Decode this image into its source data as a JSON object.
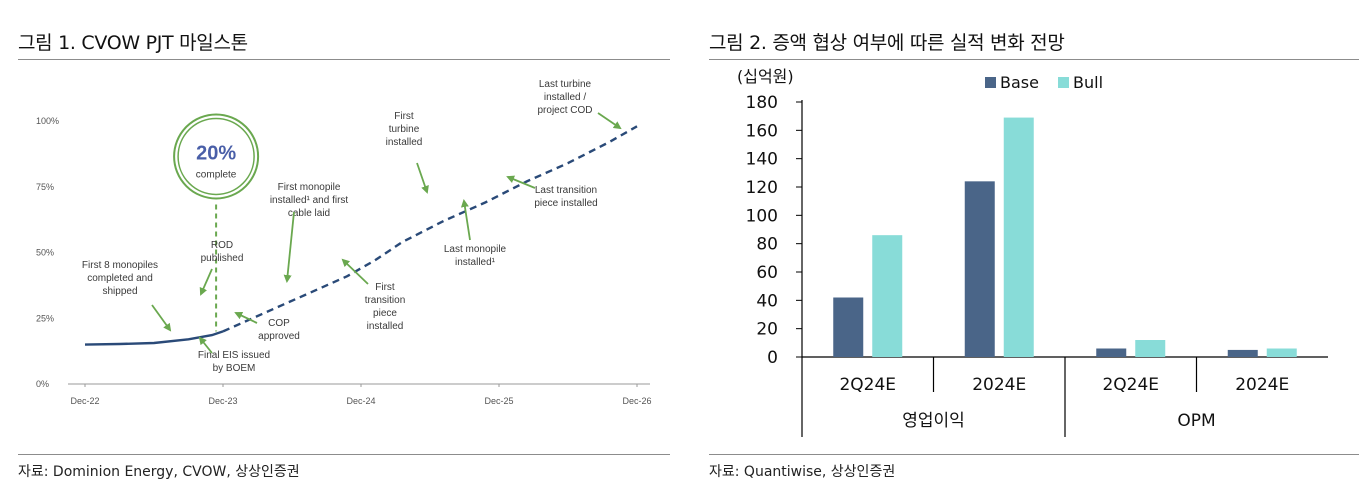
{
  "left": {
    "title": "그림 1. CVOW PJT 마일스톤",
    "source": "자료: Dominion Energy, CVOW, 상상인증권",
    "badge": {
      "value": "20%",
      "label": "complete"
    }
  },
  "right": {
    "title": "그림 2. 증액 협상 여부에 따른 실적 변화 전망",
    "source": "자료: Quantiwise, 상상인증권",
    "unit": "(십억원)"
  },
  "colors": {
    "line": "#2a4a78",
    "arrow": "#6aa84f",
    "base": "#4a6588",
    "bull": "#88dcd8",
    "circle": "#6aa84f",
    "badge_text": "#4a5fa8"
  },
  "chart_data": [
    {
      "type": "line",
      "x_ticks": [
        "Dec-22",
        "Dec-23",
        "Dec-24",
        "Dec-25",
        "Dec-26"
      ],
      "y_ticks": [
        "0%",
        "25%",
        "50%",
        "75%",
        "100%"
      ],
      "ylim": [
        0,
        100
      ],
      "series": [
        {
          "style": "solid",
          "points": [
            [
              0,
              15
            ],
            [
              0.25,
              15.2
            ],
            [
              0.5,
              15.6
            ],
            [
              0.75,
              17
            ],
            [
              0.92,
              18.6
            ],
            [
              1.0,
              20
            ]
          ]
        },
        {
          "style": "dashed",
          "points": [
            [
              1.0,
              20
            ],
            [
              1.3,
              27
            ],
            [
              1.6,
              34
            ],
            [
              1.9,
              41
            ],
            [
              2.1,
              47
            ],
            [
              2.3,
              54
            ],
            [
              2.6,
              62
            ],
            [
              2.9,
              69
            ],
            [
              3.2,
              77
            ],
            [
              3.5,
              84
            ],
            [
              3.8,
              92
            ],
            [
              4.0,
              98
            ]
          ]
        }
      ],
      "annotations": [
        {
          "lines": [
            "First 8 monopiles",
            "completed and",
            "shipped"
          ],
          "at": [
            0.8,
            18
          ]
        },
        {
          "lines": [
            "ROD",
            "published"
          ],
          "at": [
            0.95,
            22
          ]
        },
        {
          "lines": [
            "Final EIS issued",
            "by BOEM"
          ],
          "at": [
            1.0,
            14
          ]
        },
        {
          "lines": [
            "COP",
            "approved"
          ],
          "at": [
            1.1,
            24
          ]
        },
        {
          "lines": [
            "First monopile",
            "installed¹ and first",
            "cable laid"
          ],
          "at": [
            1.5,
            38
          ]
        },
        {
          "lines": [
            "First",
            "transition",
            "piece",
            "installed"
          ],
          "at": [
            2.0,
            48
          ]
        },
        {
          "lines": [
            "First",
            "turbine",
            "installed"
          ],
          "at": [
            3.0,
            72
          ]
        },
        {
          "lines": [
            "Last monopile",
            "installed¹"
          ],
          "at": [
            2.85,
            68
          ]
        },
        {
          "lines": [
            "Last transition",
            "piece installed"
          ],
          "at": [
            3.35,
            79
          ]
        },
        {
          "lines": [
            "Last turbine",
            "installed /",
            "project COD"
          ],
          "at": [
            3.9,
            96
          ]
        }
      ]
    },
    {
      "type": "bar",
      "categories": [
        "2Q24E",
        "2024E",
        "2Q24E",
        "2024E"
      ],
      "groups": [
        "영업이익",
        "OPM"
      ],
      "series": [
        {
          "name": "Base",
          "values": [
            42,
            124,
            6,
            5
          ]
        },
        {
          "name": "Bull",
          "values": [
            86,
            169,
            12,
            6
          ]
        }
      ],
      "ylim": [
        0,
        180
      ],
      "y_ticks": [
        0,
        20,
        40,
        60,
        80,
        100,
        120,
        140,
        160,
        180
      ],
      "legend": "top"
    }
  ]
}
